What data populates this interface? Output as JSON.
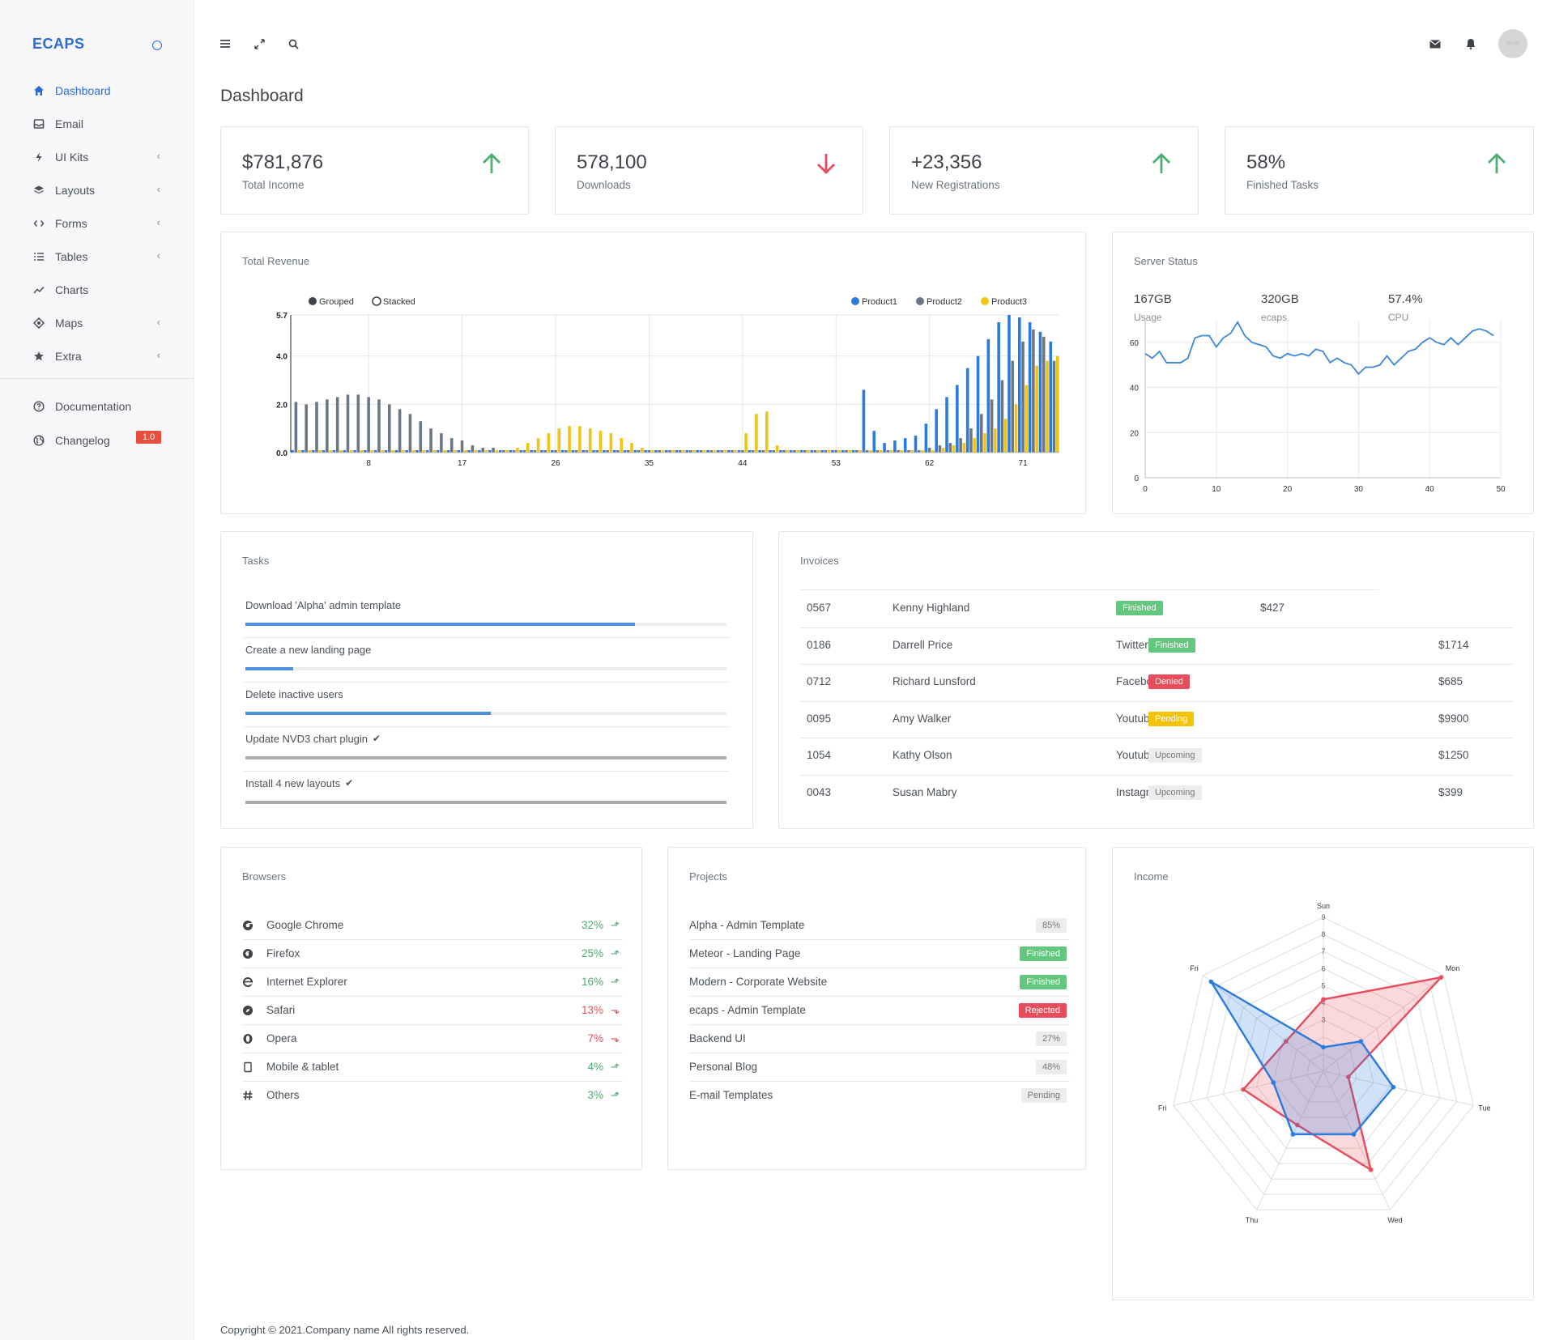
{
  "brand": "ECAPS",
  "sidebar": {
    "items": [
      {
        "label": "Dashboard",
        "icon": "home-icon"
      },
      {
        "label": "Email",
        "icon": "inbox-icon"
      },
      {
        "label": "UI Kits",
        "icon": "bolt-icon"
      },
      {
        "label": "Layouts",
        "icon": "layers-icon"
      },
      {
        "label": "Forms",
        "icon": "code-icon"
      },
      {
        "label": "Tables",
        "icon": "list-icon"
      },
      {
        "label": "Charts",
        "icon": "trend-icon"
      },
      {
        "label": "Maps",
        "icon": "target-icon"
      },
      {
        "label": "Extra",
        "icon": "star-icon"
      }
    ],
    "secondary": [
      {
        "label": "Documentation",
        "icon": "help-circle-icon"
      },
      {
        "label": "Changelog",
        "icon": "globe-icon",
        "badge": "1.0"
      }
    ]
  },
  "page_title": "Dashboard",
  "stats": [
    {
      "value": "$781,876",
      "label": "Total Income",
      "trend": "up",
      "color": "#4caf70"
    },
    {
      "value": "578,100",
      "label": "Downloads",
      "trend": "down",
      "color": "#e74c5c"
    },
    {
      "value": "+23,356",
      "label": "New Registrations",
      "trend": "up",
      "color": "#4caf70"
    },
    {
      "value": "58%",
      "label": "Finished Tasks",
      "trend": "up",
      "color": "#4caf70"
    }
  ],
  "revenue": {
    "title": "Total Revenue",
    "controls": [
      "Grouped",
      "Stacked"
    ],
    "legend": [
      "Product1",
      "Product2",
      "Product3"
    ]
  },
  "server": {
    "title": "Server Status",
    "metrics": [
      {
        "value": "167GB",
        "label": "Usage"
      },
      {
        "value": "320GB",
        "label": "ecaps"
      },
      {
        "value": "57.4%",
        "label": "CPU"
      }
    ]
  },
  "tasks": {
    "title": "Tasks",
    "items": [
      {
        "label": "Download 'Alpha' admin template",
        "progress": 0.81,
        "done": false
      },
      {
        "label": "Create a new landing page",
        "progress": 0.1,
        "done": false
      },
      {
        "label": "Delete inactive users",
        "progress": 0.51,
        "done": false
      },
      {
        "label": "Update NVD3 chart plugin",
        "progress": 1.0,
        "done": true
      },
      {
        "label": "Install 4 new layouts",
        "progress": 1.0,
        "done": true
      }
    ]
  },
  "invoices": {
    "title": "Invoices",
    "rows": [
      {
        "id": "0567",
        "name": "Kenny Highland",
        "source": "",
        "status": "Finished",
        "amount": "$427"
      },
      {
        "id": "0186",
        "name": "Darrell Price",
        "source": "Twitter",
        "status": "Finished",
        "amount": "$1714"
      },
      {
        "id": "0712",
        "name": "Richard Lunsford",
        "source": "Facebook",
        "status": "Denied",
        "amount": "$685"
      },
      {
        "id": "0095",
        "name": "Amy Walker",
        "source": "Youtube",
        "status": "Pending",
        "amount": "$9900"
      },
      {
        "id": "1054",
        "name": "Kathy Olson",
        "source": "Youtube",
        "status": "Upcoming",
        "amount": "$1250"
      },
      {
        "id": "0043",
        "name": "Susan Mabry",
        "source": "Instagram",
        "status": "Upcoming",
        "amount": "$399"
      }
    ]
  },
  "browsers": {
    "title": "Browsers",
    "items": [
      {
        "name": "Google Chrome",
        "pct": "32%",
        "trend": "up",
        "icon": "chrome-icon"
      },
      {
        "name": "Firefox",
        "pct": "25%",
        "trend": "up",
        "icon": "firefox-icon"
      },
      {
        "name": "Internet Explorer",
        "pct": "16%",
        "trend": "up",
        "icon": "ie-icon"
      },
      {
        "name": "Safari",
        "pct": "13%",
        "trend": "down",
        "icon": "safari-icon"
      },
      {
        "name": "Opera",
        "pct": "7%",
        "trend": "down",
        "icon": "opera-icon"
      },
      {
        "name": "Mobile & tablet",
        "pct": "4%",
        "trend": "up",
        "icon": "tablet-icon"
      },
      {
        "name": "Others",
        "pct": "3%",
        "trend": "up",
        "icon": "hashtag-icon"
      }
    ]
  },
  "projects": {
    "title": "Projects",
    "items": [
      {
        "name": "Alpha - Admin Template",
        "badge": "85%",
        "kind": "gray"
      },
      {
        "name": "Meteor - Landing Page",
        "badge": "Finished",
        "kind": "green"
      },
      {
        "name": "Modern - Corporate Website",
        "badge": "Finished",
        "kind": "green"
      },
      {
        "name": "ecaps - Admin Template",
        "badge": "Rejected",
        "kind": "red"
      },
      {
        "name": "Backend UI",
        "badge": "27%",
        "kind": "gray"
      },
      {
        "name": "Personal Blog",
        "badge": "48%",
        "kind": "gray"
      },
      {
        "name": "E-mail Templates",
        "badge": "Pending",
        "kind": "gray"
      }
    ]
  },
  "income_title": "Income",
  "footer": "Copyright © 2021.Company name All rights reserved.",
  "chart_data": [
    {
      "type": "bar",
      "ylim": [
        0,
        5.7
      ],
      "y_ticks": [
        0.0,
        2.0,
        4.0,
        5.7
      ],
      "x_ticks": [
        8,
        17,
        26,
        35,
        44,
        53,
        62,
        71
      ],
      "series": [
        {
          "name": "Product1",
          "color": "#2a7be0",
          "values": [
            0.1,
            0.1,
            0.1,
            0.1,
            0.1,
            0.1,
            0.1,
            0.1,
            0.1,
            0.1,
            0.1,
            0.1,
            0.1,
            0.1,
            0.1,
            0.1,
            0.1,
            0.1,
            0.1,
            0.1,
            0.1,
            0.1,
            0.1,
            0.1,
            0.1,
            0.1,
            0.1,
            0.1,
            0.1,
            0.1,
            0.1,
            0.1,
            0.1,
            0.1,
            0.1,
            0.1,
            0.1,
            0.1,
            0.1,
            0.1,
            0.1,
            0.1,
            0.1,
            0.1,
            0.1,
            0.1,
            0.1,
            0.1,
            0.1,
            0.1,
            0.1,
            0.1,
            0.1,
            0.1,
            0.1,
            2.6,
            0.9,
            0.4,
            0.5,
            0.6,
            0.7,
            1.2,
            1.8,
            2.3,
            2.8,
            3.5,
            4.0,
            4.7,
            5.4,
            5.7,
            5.6,
            5.4,
            5.0,
            4.6
          ]
        },
        {
          "name": "Product2",
          "color": "#6c7785",
          "values": [
            2.1,
            2.0,
            2.1,
            2.2,
            2.3,
            2.4,
            2.4,
            2.3,
            2.2,
            2.0,
            1.8,
            1.6,
            1.3,
            1.0,
            0.8,
            0.6,
            0.5,
            0.3,
            0.2,
            0.2,
            0.1,
            0.1,
            0.1,
            0.1,
            0.1,
            0.1,
            0.1,
            0.1,
            0.1,
            0.1,
            0.1,
            0.1,
            0.1,
            0.1,
            0.1,
            0.1,
            0.1,
            0.1,
            0.1,
            0.1,
            0.1,
            0.1,
            0.1,
            0.1,
            0.1,
            0.1,
            0.1,
            0.1,
            0.1,
            0.1,
            0.1,
            0.1,
            0.1,
            0.1,
            0.1,
            0.1,
            0.1,
            0.1,
            0.1,
            0.1,
            0.1,
            0.2,
            0.3,
            0.4,
            0.6,
            1.0,
            1.6,
            2.2,
            3.0,
            3.8,
            4.6,
            5.1,
            4.8,
            3.8
          ]
        },
        {
          "name": "Product3",
          "color": "#f1c40f",
          "values": [
            0.1,
            0.1,
            0.1,
            0.1,
            0.1,
            0.1,
            0.1,
            0.1,
            0.1,
            0.1,
            0.1,
            0.1,
            0.1,
            0.1,
            0.1,
            0.1,
            0.1,
            0.1,
            0.1,
            0.1,
            0.1,
            0.2,
            0.4,
            0.6,
            0.8,
            1.0,
            1.1,
            1.1,
            1.0,
            0.9,
            0.8,
            0.6,
            0.4,
            0.2,
            0.1,
            0.1,
            0.1,
            0.1,
            0.1,
            0.1,
            0.1,
            0.1,
            0.1,
            0.8,
            1.6,
            1.7,
            0.3,
            0.1,
            0.1,
            0.1,
            0.1,
            0.1,
            0.1,
            0.1,
            0.1,
            0.1,
            0.1,
            0.1,
            0.1,
            0.1,
            0.1,
            0.1,
            0.2,
            0.3,
            0.4,
            0.6,
            0.8,
            1.0,
            1.4,
            2.0,
            2.8,
            3.6,
            3.8,
            4.0
          ]
        }
      ]
    },
    {
      "type": "line",
      "x_ticks": [
        0,
        10,
        20,
        30,
        40,
        50
      ],
      "y_ticks": [
        0,
        20,
        40,
        60
      ],
      "ylim": [
        0,
        70
      ],
      "xlim": [
        0,
        50
      ],
      "series": [
        {
          "color": "#3c86d8",
          "values": [
            55,
            53,
            56,
            51,
            51,
            51,
            53,
            62,
            63,
            63,
            58,
            62,
            64,
            69,
            63,
            60,
            59,
            58,
            54,
            53,
            55,
            54,
            55,
            54,
            57,
            56,
            51,
            53,
            51,
            50,
            46,
            49,
            49,
            50,
            54,
            50,
            53,
            56,
            57,
            60,
            62,
            60,
            59,
            62,
            59,
            62,
            65,
            66,
            65,
            63
          ]
        }
      ]
    },
    {
      "type": "radar",
      "axes": [
        "Sun",
        "Mon",
        "Tue",
        "Wed",
        "Thu",
        "Fri",
        "Fri"
      ],
      "r_ticks": [
        3,
        4,
        5,
        6,
        7,
        8,
        9
      ],
      "rmax": 9,
      "series": [
        {
          "color": "#e74c5c",
          "values": [
            4.2,
            8.8,
            1.5,
            6.4,
            3.5,
            4.8,
            2.8
          ]
        },
        {
          "color": "#2a7be0",
          "values": [
            1.4,
            2.8,
            4.2,
            4.1,
            4.1,
            3.0,
            8.4
          ]
        }
      ]
    }
  ]
}
